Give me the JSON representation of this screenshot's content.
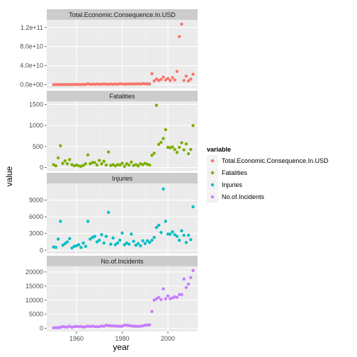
{
  "chart_data": {
    "type": "scatter",
    "xlabel": "year",
    "ylabel": "value",
    "xlim": [
      1947,
      2013
    ],
    "x_ticks": [
      "1960",
      "1980",
      "2000"
    ],
    "x_tick_values": [
      1960,
      1980,
      2000
    ],
    "legend": {
      "title": "variable",
      "placement": "right",
      "entries": [
        "Total.Economic.Consequence.In.USD",
        "Fatalities",
        "Injuries",
        "No.of.Incidents"
      ]
    },
    "panels": [
      {
        "name": "Total.Economic.Consequence.In.USD",
        "color": "#F8766D",
        "ylim": [
          -8000000000,
          136000000000
        ],
        "y_ticks": [
          "0.0e+00",
          "4.0e+10",
          "8.0e+10",
          "1.2e+11"
        ],
        "y_tick_values": [
          0,
          40000000000,
          80000000000,
          120000000000
        ],
        "points": [
          [
            1950,
            200000000
          ],
          [
            1951,
            300000000
          ],
          [
            1952,
            200000000
          ],
          [
            1953,
            400000000
          ],
          [
            1954,
            300000000
          ],
          [
            1955,
            500000000
          ],
          [
            1956,
            400000000
          ],
          [
            1957,
            300000000
          ],
          [
            1958,
            500000000
          ],
          [
            1959,
            400000000
          ],
          [
            1960,
            600000000
          ],
          [
            1961,
            500000000
          ],
          [
            1962,
            400000000
          ],
          [
            1963,
            700000000
          ],
          [
            1964,
            600000000
          ],
          [
            1965,
            2000000000
          ],
          [
            1966,
            800000000
          ],
          [
            1967,
            1200000000
          ],
          [
            1968,
            900000000
          ],
          [
            1969,
            1500000000
          ],
          [
            1970,
            1000000000
          ],
          [
            1971,
            800000000
          ],
          [
            1972,
            1800000000
          ],
          [
            1973,
            1000000000
          ],
          [
            1974,
            1100000000
          ],
          [
            1975,
            1300000000
          ],
          [
            1976,
            900000000
          ],
          [
            1977,
            1400000000
          ],
          [
            1978,
            1000000000
          ],
          [
            1979,
            2000000000
          ],
          [
            1980,
            1600000000
          ],
          [
            1981,
            1200000000
          ],
          [
            1982,
            1500000000
          ],
          [
            1983,
            1800000000
          ],
          [
            1984,
            1300000000
          ],
          [
            1985,
            1700000000
          ],
          [
            1986,
            1500000000
          ],
          [
            1987,
            1900000000
          ],
          [
            1988,
            1400000000
          ],
          [
            1989,
            2500000000
          ],
          [
            1990,
            1800000000
          ],
          [
            1991,
            2000000000
          ],
          [
            1992,
            1600000000
          ],
          [
            1993,
            23000000000
          ],
          [
            1994,
            8000000000
          ],
          [
            1995,
            12000000000
          ],
          [
            1996,
            9000000000
          ],
          [
            1997,
            11000000000
          ],
          [
            1998,
            16000000000
          ],
          [
            1999,
            10000000000
          ],
          [
            2000,
            13000000000
          ],
          [
            2001,
            9000000000
          ],
          [
            2002,
            15000000000
          ],
          [
            2003,
            10000000000
          ],
          [
            2004,
            28000000000
          ],
          [
            2005,
            101000000000
          ],
          [
            2006,
            127000000000
          ],
          [
            2007,
            9000000000
          ],
          [
            2008,
            18000000000
          ],
          [
            2009,
            8000000000
          ],
          [
            2010,
            12000000000
          ],
          [
            2011,
            22000000000
          ]
        ]
      },
      {
        "name": "Fatalities",
        "color": "#7CAE00",
        "ylim": [
          -75,
          1575
        ],
        "y_ticks": [
          "0",
          "500",
          "1000",
          "1500"
        ],
        "y_tick_values": [
          0,
          500,
          1000,
          1500
        ],
        "points": [
          [
            1950,
            70
          ],
          [
            1951,
            40
          ],
          [
            1952,
            230
          ],
          [
            1953,
            520
          ],
          [
            1954,
            100
          ],
          [
            1955,
            160
          ],
          [
            1956,
            90
          ],
          [
            1957,
            190
          ],
          [
            1958,
            70
          ],
          [
            1959,
            40
          ],
          [
            1960,
            60
          ],
          [
            1961,
            40
          ],
          [
            1962,
            30
          ],
          [
            1963,
            50
          ],
          [
            1964,
            90
          ],
          [
            1965,
            300
          ],
          [
            1966,
            90
          ],
          [
            1967,
            120
          ],
          [
            1968,
            120
          ],
          [
            1969,
            60
          ],
          [
            1970,
            170
          ],
          [
            1971,
            90
          ],
          [
            1972,
            150
          ],
          [
            1973,
            60
          ],
          [
            1974,
            370
          ],
          [
            1975,
            50
          ],
          [
            1976,
            70
          ],
          [
            1977,
            40
          ],
          [
            1978,
            70
          ],
          [
            1979,
            60
          ],
          [
            1980,
            100
          ],
          [
            1981,
            30
          ],
          [
            1982,
            90
          ],
          [
            1983,
            60
          ],
          [
            1984,
            130
          ],
          [
            1985,
            50
          ],
          [
            1986,
            70
          ],
          [
            1987,
            40
          ],
          [
            1988,
            90
          ],
          [
            1989,
            70
          ],
          [
            1990,
            100
          ],
          [
            1991,
            80
          ],
          [
            1992,
            60
          ],
          [
            1993,
            290
          ],
          [
            1994,
            340
          ],
          [
            1995,
            1480
          ],
          [
            1996,
            550
          ],
          [
            1997,
            600
          ],
          [
            1998,
            690
          ],
          [
            1999,
            900
          ],
          [
            2000,
            480
          ],
          [
            2001,
            470
          ],
          [
            2002,
            490
          ],
          [
            2003,
            430
          ],
          [
            2004,
            360
          ],
          [
            2005,
            480
          ],
          [
            2006,
            590
          ],
          [
            2007,
            420
          ],
          [
            2008,
            560
          ],
          [
            2009,
            330
          ],
          [
            2010,
            430
          ],
          [
            2011,
            1000
          ]
        ]
      },
      {
        "name": "Injuries",
        "color": "#00BFC4",
        "ylim": [
          -600,
          12000
        ],
        "y_ticks": [
          "0",
          "3000",
          "6000",
          "9000"
        ],
        "y_tick_values": [
          0,
          3000,
          6000,
          9000
        ],
        "points": [
          [
            1950,
            600
          ],
          [
            1951,
            500
          ],
          [
            1952,
            2000
          ],
          [
            1953,
            5200
          ],
          [
            1954,
            900
          ],
          [
            1955,
            1200
          ],
          [
            1956,
            1500
          ],
          [
            1957,
            2100
          ],
          [
            1958,
            400
          ],
          [
            1959,
            700
          ],
          [
            1960,
            800
          ],
          [
            1961,
            1000
          ],
          [
            1962,
            500
          ],
          [
            1963,
            1300
          ],
          [
            1964,
            700
          ],
          [
            1965,
            5200
          ],
          [
            1966,
            2000
          ],
          [
            1967,
            2300
          ],
          [
            1968,
            2500
          ],
          [
            1969,
            1500
          ],
          [
            1970,
            1800
          ],
          [
            1971,
            2800
          ],
          [
            1972,
            1300
          ],
          [
            1973,
            2500
          ],
          [
            1974,
            6800
          ],
          [
            1975,
            1100
          ],
          [
            1976,
            2200
          ],
          [
            1977,
            1000
          ],
          [
            1978,
            1300
          ],
          [
            1979,
            1800
          ],
          [
            1980,
            3100
          ],
          [
            1981,
            1000
          ],
          [
            1982,
            1300
          ],
          [
            1983,
            1100
          ],
          [
            1984,
            2900
          ],
          [
            1985,
            1600
          ],
          [
            1986,
            900
          ],
          [
            1987,
            1200
          ],
          [
            1988,
            800
          ],
          [
            1989,
            1700
          ],
          [
            1990,
            1200
          ],
          [
            1991,
            1700
          ],
          [
            1992,
            1400
          ],
          [
            1993,
            1800
          ],
          [
            1994,
            2300
          ],
          [
            1995,
            4100
          ],
          [
            1996,
            4500
          ],
          [
            1997,
            3200
          ],
          [
            1998,
            11000
          ],
          [
            1999,
            5200
          ],
          [
            2000,
            2900
          ],
          [
            2001,
            2900
          ],
          [
            2002,
            3300
          ],
          [
            2003,
            2800
          ],
          [
            2004,
            2500
          ],
          [
            2005,
            1800
          ],
          [
            2006,
            3500
          ],
          [
            2007,
            2700
          ],
          [
            2008,
            1400
          ],
          [
            2009,
            2700
          ],
          [
            2010,
            1900
          ],
          [
            2011,
            7800
          ]
        ]
      },
      {
        "name": "No.of.Incidents",
        "color": "#C77CFF",
        "ylim": [
          -1100,
          22000
        ],
        "y_ticks": [
          "0",
          "5000",
          "10000",
          "15000",
          "20000"
        ],
        "y_tick_values": [
          0,
          5000,
          10000,
          15000,
          20000
        ],
        "points": [
          [
            1950,
            200
          ],
          [
            1951,
            250
          ],
          [
            1952,
            250
          ],
          [
            1953,
            400
          ],
          [
            1954,
            600
          ],
          [
            1955,
            500
          ],
          [
            1956,
            450
          ],
          [
            1957,
            800
          ],
          [
            1958,
            400
          ],
          [
            1959,
            600
          ],
          [
            1960,
            700
          ],
          [
            1961,
            600
          ],
          [
            1962,
            650
          ],
          [
            1963,
            450
          ],
          [
            1964,
            600
          ],
          [
            1965,
            800
          ],
          [
            1966,
            650
          ],
          [
            1967,
            800
          ],
          [
            1968,
            650
          ],
          [
            1969,
            600
          ],
          [
            1970,
            650
          ],
          [
            1971,
            850
          ],
          [
            1972,
            750
          ],
          [
            1973,
            1100
          ],
          [
            1974,
            1000
          ],
          [
            1975,
            900
          ],
          [
            1976,
            850
          ],
          [
            1977,
            850
          ],
          [
            1978,
            800
          ],
          [
            1979,
            750
          ],
          [
            1980,
            750
          ],
          [
            1981,
            1150
          ],
          [
            1982,
            1100
          ],
          [
            1983,
            1000
          ],
          [
            1984,
            900
          ],
          [
            1985,
            750
          ],
          [
            1986,
            800
          ],
          [
            1987,
            700
          ],
          [
            1988,
            800
          ],
          [
            1989,
            900
          ],
          [
            1990,
            1100
          ],
          [
            1991,
            1200
          ],
          [
            1992,
            1250
          ],
          [
            1993,
            6000
          ],
          [
            1994,
            10000
          ],
          [
            1995,
            10500
          ],
          [
            1996,
            11000
          ],
          [
            1997,
            10200
          ],
          [
            1998,
            14000
          ],
          [
            1999,
            10500
          ],
          [
            2000,
            11500
          ],
          [
            2001,
            10500
          ],
          [
            2002,
            10800
          ],
          [
            2003,
            11200
          ],
          [
            2004,
            11000
          ],
          [
            2005,
            12000
          ],
          [
            2006,
            12000
          ],
          [
            2007,
            17500
          ],
          [
            2008,
            14500
          ],
          [
            2009,
            15700
          ],
          [
            2010,
            18000
          ],
          [
            2011,
            20500
          ]
        ]
      }
    ]
  }
}
